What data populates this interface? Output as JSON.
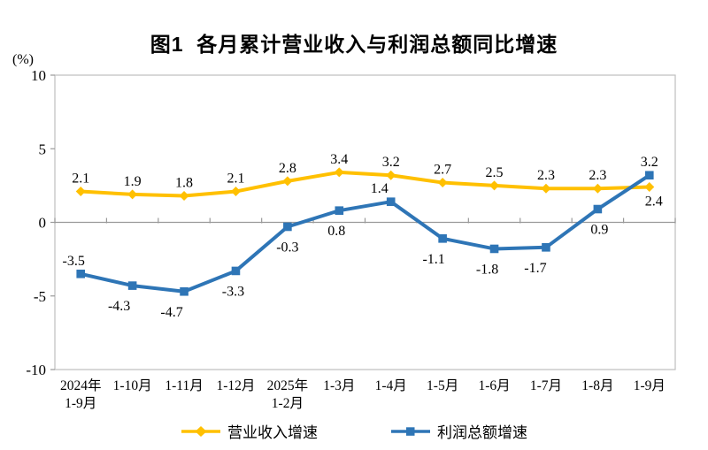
{
  "title": "图1  各月累计营业收入与利润总额同比增速",
  "unit_label": "(%)",
  "chart_data": {
    "type": "line",
    "title": "图1  各月累计营业收入与利润总额同比增速",
    "ylabel": "(%)",
    "categories": [
      [
        "2024年",
        "1-9月"
      ],
      [
        "1-10月"
      ],
      [
        "1-11月"
      ],
      [
        "1-12月"
      ],
      [
        "2025年",
        "1-2月"
      ],
      [
        "1-3月"
      ],
      [
        "1-4月"
      ],
      [
        "1-5月"
      ],
      [
        "1-6月"
      ],
      [
        "1-7月"
      ],
      [
        "1-8月"
      ],
      [
        "1-9月"
      ]
    ],
    "series": [
      {
        "name": "营业收入增速",
        "color": "#FFC000",
        "marker": "diamond",
        "values": [
          2.1,
          1.9,
          1.8,
          2.1,
          2.8,
          3.4,
          3.2,
          2.7,
          2.5,
          2.3,
          2.3,
          2.4
        ],
        "label_pos": [
          "above",
          "above",
          "above",
          "above",
          "above",
          "above",
          "above",
          "above",
          "above",
          "above",
          "above",
          "below"
        ],
        "label_dx": [
          0,
          0,
          0,
          0,
          0,
          0,
          0,
          0,
          0,
          0,
          0,
          5
        ],
        "label_dy": [
          0,
          0,
          0,
          0,
          0,
          0,
          0,
          0,
          0,
          0,
          0,
          -7
        ]
      },
      {
        "name": "利润总额增速",
        "color": "#2E75B6",
        "marker": "square",
        "values": [
          -3.5,
          -4.3,
          -4.7,
          -3.3,
          -0.3,
          0.8,
          1.4,
          -1.1,
          -1.8,
          -1.7,
          0.9,
          3.2
        ],
        "label_pos": [
          "above",
          "below",
          "below",
          "below",
          "below",
          "below",
          "above",
          "below",
          "below",
          "below",
          "below",
          "above"
        ],
        "label_dx": [
          -8,
          -15,
          -14,
          -3,
          0,
          -3,
          -13,
          -10,
          -8,
          -12,
          2,
          0
        ],
        "label_dy": [
          0,
          0,
          0,
          0,
          0,
          0,
          0,
          0,
          0,
          0,
          0,
          0
        ]
      }
    ],
    "y_ticks": [
      10,
      5,
      0,
      -5,
      -10
    ],
    "ylim": [
      -10,
      10
    ],
    "grid": "zero-line-only",
    "legend_position": "bottom",
    "axis_color": "#BFBFBF",
    "zero_line_color": "#999999",
    "label_color": "#000000"
  }
}
